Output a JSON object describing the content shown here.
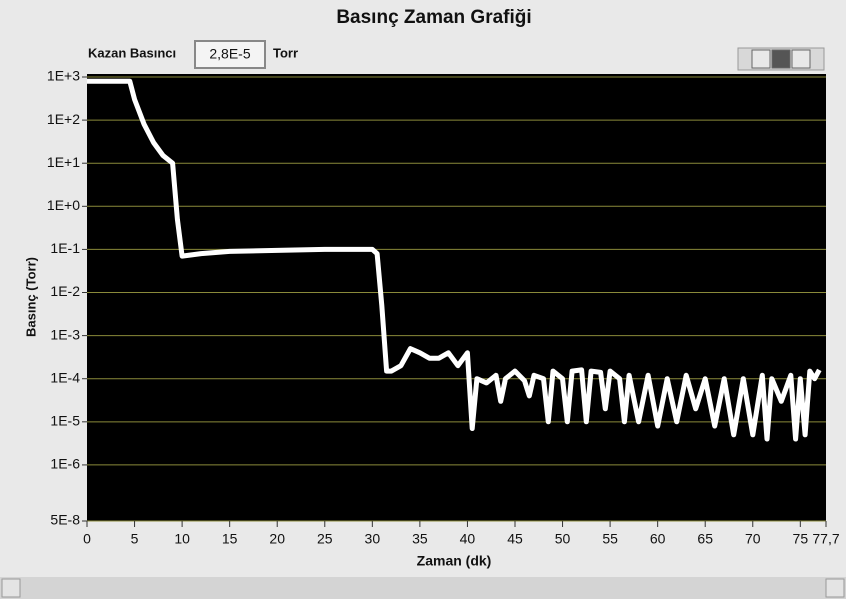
{
  "chart_data": {
    "type": "line",
    "title": "Basınç Zaman Grafiği",
    "indicator": {
      "label": "Kazan Basıncı",
      "value": "2,8E-5",
      "unit": "Torr"
    },
    "x_label": "Zaman (dk)",
    "y_label": "Basınç (Torr)",
    "log_y": true,
    "grid": true,
    "grid_color": "#8a8a3a",
    "background": "#000000",
    "xlim": [
      0,
      77.7
    ],
    "xticks": [
      0,
      5,
      10,
      15,
      20,
      25,
      30,
      35,
      40,
      45,
      50,
      55,
      60,
      65,
      70,
      75,
      {
        "value": 77.7,
        "label": "77,7"
      }
    ],
    "ylim": [
      5e-08,
      1000
    ],
    "yticks": [
      {
        "value": 1000,
        "label": "1E+3"
      },
      {
        "value": 100,
        "label": "1E+2"
      },
      {
        "value": 10,
        "label": "1E+1"
      },
      {
        "value": 1,
        "label": "1E+0"
      },
      {
        "value": 0.1,
        "label": "1E-1"
      },
      {
        "value": 0.01,
        "label": "1E-2"
      },
      {
        "value": 0.001,
        "label": "1E-3"
      },
      {
        "value": 0.0001,
        "label": "1E-4"
      },
      {
        "value": 1e-05,
        "label": "1E-5"
      },
      {
        "value": 1e-06,
        "label": "1E-6"
      },
      {
        "value": 5e-08,
        "label": "5E-8"
      }
    ],
    "x": [
      0,
      4.5,
      5,
      6,
      7,
      8,
      9,
      9.5,
      10,
      12,
      15,
      20,
      25,
      30,
      30.5,
      31,
      31.5,
      32,
      33,
      34,
      35,
      36,
      37,
      38,
      39,
      40,
      40.5,
      41,
      42,
      43,
      43.5,
      44,
      45,
      46,
      46.5,
      47,
      48,
      48.5,
      49,
      50,
      50.5,
      51,
      52,
      52.5,
      53,
      54,
      54.5,
      55,
      56,
      56.5,
      57,
      58,
      59,
      60,
      61,
      62,
      63,
      64,
      65,
      66,
      67,
      68,
      69,
      70,
      71,
      71.5,
      72,
      73,
      74,
      74.5,
      75,
      75.5,
      76,
      76.5,
      77
    ],
    "series": [
      {
        "color": "#ffffff",
        "values": [
          800,
          800,
          300,
          80,
          30,
          15,
          10,
          0.5,
          0.07,
          0.08,
          0.09,
          0.095,
          0.1,
          0.1,
          0.08,
          0.005,
          0.00015,
          0.00015,
          0.0002,
          0.0005,
          0.0004,
          0.0003,
          0.0003,
          0.0004,
          0.0002,
          0.0004,
          7e-06,
          0.0001,
          8e-05,
          0.00012,
          3e-05,
          0.0001,
          0.00015,
          9e-05,
          4e-05,
          0.00012,
          0.0001,
          1e-05,
          0.00015,
          0.0001,
          1e-05,
          0.00015,
          0.00016,
          1e-05,
          0.00015,
          0.00014,
          2e-05,
          0.00015,
          0.0001,
          1e-05,
          0.00012,
          1e-05,
          0.00012,
          8e-06,
          0.0001,
          1e-05,
          0.00012,
          2e-05,
          0.0001,
          8e-06,
          0.0001,
          5e-06,
          0.0001,
          5e-06,
          0.00012,
          4e-06,
          0.0001,
          3e-05,
          0.00012,
          4e-06,
          0.0001,
          5e-06,
          0.00015,
          0.0001,
          0.00016
        ]
      }
    ]
  }
}
